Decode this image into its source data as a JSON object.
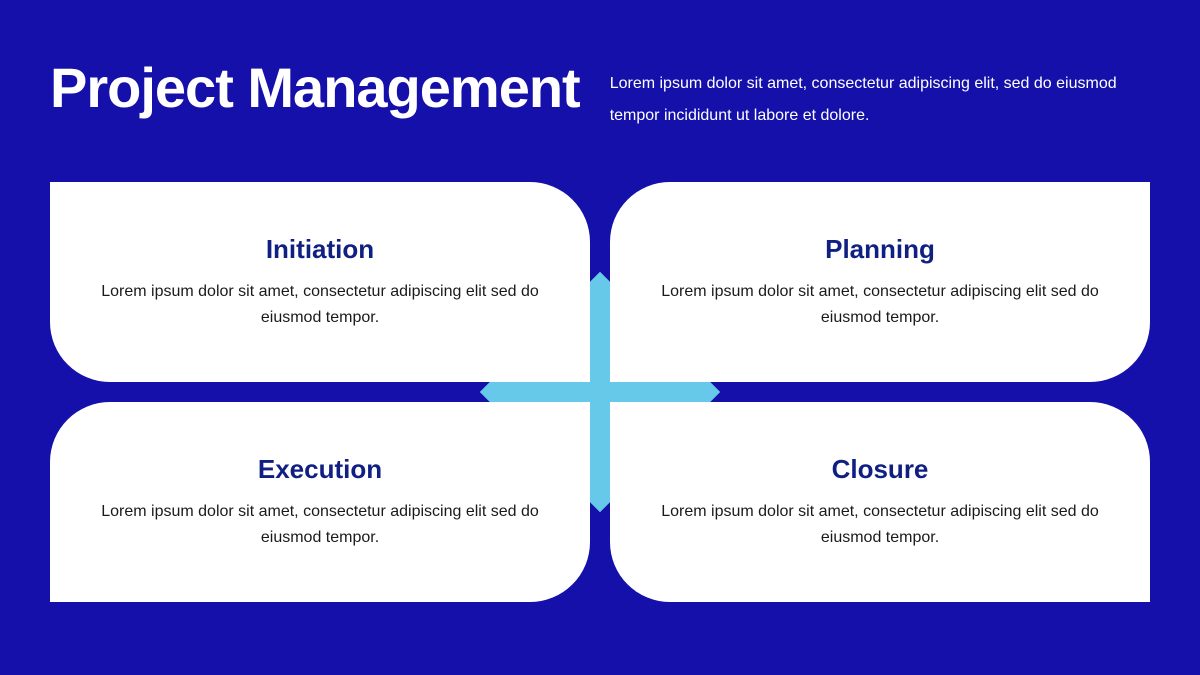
{
  "colors": {
    "background": "#1510a9",
    "card_bg": "#ffffff",
    "diamond": "#67c9ea",
    "title_text": "#ffffff",
    "subtitle_text": "#ffffff",
    "card_title_text": "#0f1f82",
    "card_body_text": "#1a1a1a"
  },
  "header": {
    "title": "Project Management",
    "subtitle": "Lorem ipsum dolor sit amet, consectetur adipiscing elit, sed do eiusmod tempor incididunt ut labore et dolore."
  },
  "cards": [
    {
      "title": "Initiation",
      "body": "Lorem ipsum dolor sit amet, consectetur adipiscing elit sed do eiusmod tempor."
    },
    {
      "title": "Planning",
      "body": "Lorem ipsum dolor sit amet, consectetur adipiscing elit sed do eiusmod tempor."
    },
    {
      "title": "Execution",
      "body": "Lorem ipsum dolor sit amet, consectetur adipiscing elit sed do eiusmod tempor."
    },
    {
      "title": "Closure",
      "body": "Lorem ipsum dolor sit amet, consectetur adipiscing elit sed do eiusmod tempor."
    }
  ],
  "layout": {
    "card_border_radius": 60,
    "grid_gap": 20,
    "diamond_size": 170
  },
  "typography": {
    "title_fontsize": 56,
    "title_weight": 800,
    "subtitle_fontsize": 16,
    "card_title_fontsize": 26,
    "card_title_weight": 800,
    "card_body_fontsize": 16
  }
}
